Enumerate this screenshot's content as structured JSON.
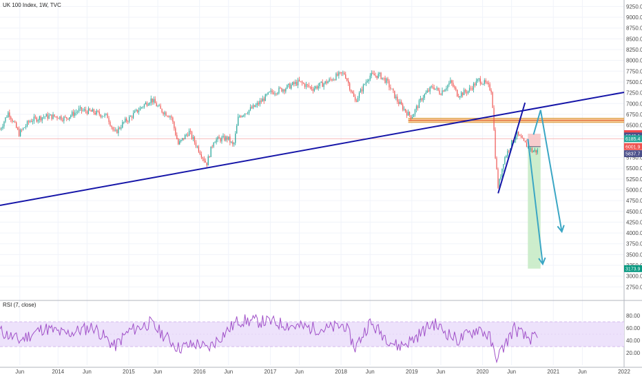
{
  "header": {
    "symbol_title": "UK 100 Index, 1W, TVC"
  },
  "rsi_header": {
    "label": "RSI (7, close)"
  },
  "colors": {
    "up": "#26a69a",
    "down": "#ef5350",
    "trendline": "#1515a8",
    "arrow": "#3aa6c4",
    "rsi_line": "#a050c8",
    "rsi_band": "#ede2fb",
    "zone_orange": "#f2b36e",
    "stop_zone": "#f7c4c4",
    "target_zone": "#c8ebc6"
  },
  "chart_data": [
    {
      "type": "candlestick",
      "title": "UK 100 Index, 1W, TVC",
      "ylim": [
        2500,
        9400
      ],
      "y_ticks": [
        9250,
        9000,
        8750,
        8500,
        8250,
        8000,
        7750,
        7500,
        7250,
        7000,
        6750,
        6500,
        6250,
        6000,
        5750,
        5500,
        5250,
        5000,
        4750,
        4500,
        4250,
        4000,
        3750,
        3500,
        3250,
        3000,
        2750
      ],
      "x_range": [
        2013.18,
        2022.0
      ],
      "x_tick_labels": [
        {
          "t": 2013.46,
          "label": "Jun"
        },
        {
          "t": 2014.0,
          "label": "2014"
        },
        {
          "t": 2014.41,
          "label": "Jun"
        },
        {
          "t": 2015.0,
          "label": "2015"
        },
        {
          "t": 2015.41,
          "label": "Jun"
        },
        {
          "t": 2016.0,
          "label": "2016"
        },
        {
          "t": 2016.41,
          "label": "Jun"
        },
        {
          "t": 2017.0,
          "label": "2017"
        },
        {
          "t": 2017.41,
          "label": "Jun"
        },
        {
          "t": 2018.0,
          "label": "2018"
        },
        {
          "t": 2018.41,
          "label": "Jun"
        },
        {
          "t": 2019.0,
          "label": "2019"
        },
        {
          "t": 2019.41,
          "label": "Jun"
        },
        {
          "t": 2020.0,
          "label": "2020"
        },
        {
          "t": 2020.41,
          "label": "Jun"
        },
        {
          "t": 2021.0,
          "label": "2021"
        },
        {
          "t": 2021.41,
          "label": "Jun"
        },
        {
          "t": 2022.0,
          "label": "2022"
        }
      ],
      "price_anchors": [
        [
          2013.18,
          6400
        ],
        [
          2013.3,
          6800
        ],
        [
          2013.45,
          6300
        ],
        [
          2013.6,
          6600
        ],
        [
          2013.8,
          6700
        ],
        [
          2014.0,
          6700
        ],
        [
          2014.1,
          6650
        ],
        [
          2014.3,
          6850
        ],
        [
          2014.5,
          6800
        ],
        [
          2014.7,
          6700
        ],
        [
          2014.8,
          6300
        ],
        [
          2014.92,
          6550
        ],
        [
          2015.0,
          6650
        ],
        [
          2015.2,
          6950
        ],
        [
          2015.32,
          7100
        ],
        [
          2015.45,
          6850
        ],
        [
          2015.6,
          6700
        ],
        [
          2015.7,
          6050
        ],
        [
          2015.85,
          6350
        ],
        [
          2016.0,
          5900
        ],
        [
          2016.1,
          5600
        ],
        [
          2016.2,
          6150
        ],
        [
          2016.4,
          6200
        ],
        [
          2016.48,
          6000
        ],
        [
          2016.55,
          6700
        ],
        [
          2016.8,
          6950
        ],
        [
          2017.0,
          7250
        ],
        [
          2017.2,
          7350
        ],
        [
          2017.4,
          7500
        ],
        [
          2017.6,
          7350
        ],
        [
          2017.8,
          7500
        ],
        [
          2017.95,
          7650
        ],
        [
          2018.05,
          7700
        ],
        [
          2018.2,
          7050
        ],
        [
          2018.4,
          7650
        ],
        [
          2018.55,
          7650
        ],
        [
          2018.65,
          7500
        ],
        [
          2018.8,
          7050
        ],
        [
          2018.95,
          6750
        ],
        [
          2019.0,
          6700
        ],
        [
          2019.15,
          7150
        ],
        [
          2019.3,
          7400
        ],
        [
          2019.4,
          7250
        ],
        [
          2019.55,
          7500
        ],
        [
          2019.65,
          7200
        ],
        [
          2019.8,
          7300
        ],
        [
          2019.95,
          7550
        ],
        [
          2020.05,
          7450
        ],
        [
          2020.13,
          7300
        ],
        [
          2020.18,
          5800
        ],
        [
          2020.22,
          5050
        ],
        [
          2020.3,
          5700
        ],
        [
          2020.4,
          6050
        ],
        [
          2020.48,
          6300
        ],
        [
          2020.58,
          6100
        ],
        [
          2020.7,
          5900
        ],
        [
          2020.78,
          5900
        ]
      ],
      "rsi_ylim": [
        0,
        100
      ],
      "rsi_ticks": [
        80,
        60,
        40,
        20
      ],
      "rsi_band": [
        30,
        70
      ],
      "rsi_anchors": [
        [
          2013.18,
          55
        ],
        [
          2013.45,
          40
        ],
        [
          2013.8,
          60
        ],
        [
          2014.1,
          50
        ],
        [
          2014.5,
          62
        ],
        [
          2014.8,
          30
        ],
        [
          2015.0,
          55
        ],
        [
          2015.3,
          68
        ],
        [
          2015.7,
          28
        ],
        [
          2016.0,
          35
        ],
        [
          2016.1,
          25
        ],
        [
          2016.55,
          72
        ],
        [
          2017.0,
          70
        ],
        [
          2017.4,
          62
        ],
        [
          2017.8,
          58
        ],
        [
          2018.05,
          65
        ],
        [
          2018.2,
          28
        ],
        [
          2018.4,
          68
        ],
        [
          2018.8,
          30
        ],
        [
          2019.0,
          40
        ],
        [
          2019.3,
          68
        ],
        [
          2019.65,
          40
        ],
        [
          2019.95,
          60
        ],
        [
          2020.1,
          45
        ],
        [
          2020.18,
          12
        ],
        [
          2020.25,
          20
        ],
        [
          2020.45,
          60
        ],
        [
          2020.6,
          45
        ],
        [
          2020.78,
          42
        ]
      ],
      "trendlines": [
        {
          "name": "long-term-support",
          "from": [
            2013.18,
            4640
          ],
          "to": [
            2022.0,
            7260
          ]
        },
        {
          "name": "rising-wedge",
          "from": [
            2020.22,
            4920
          ],
          "to": [
            2020.6,
            7020
          ]
        }
      ],
      "resistance_zone": [
        6560,
        6660
      ],
      "arrows": [
        {
          "name": "projection-1",
          "path": [
            [
              2020.72,
              6280
            ],
            [
              2020.82,
              6850
            ],
            [
              2021.12,
              4030
            ]
          ]
        },
        {
          "name": "projection-2",
          "path": [
            [
              2020.64,
              6180
            ],
            [
              2020.85,
              3280
            ]
          ]
        }
      ],
      "stop_zone": {
        "t0": 2020.64,
        "t1": 2020.82,
        "top": 6300.8,
        "bottom": 6001.9
      },
      "target_zone": {
        "t0": 2020.64,
        "t1": 2020.82,
        "top": 6001.9,
        "bottom": 3173.9
      },
      "entry_line": 6001.9,
      "current_price_line": 6185.4,
      "price_badges": [
        {
          "value": 6300.8,
          "label": "6300.8",
          "color": "#f23645"
        },
        {
          "value": 6280.7,
          "label": "6280.7",
          "color": "#ef5350"
        },
        {
          "value": 6249.1,
          "label": "6249.1",
          "color": "#4b4f8a"
        },
        {
          "value": 6185.4,
          "label": "6185.4",
          "color": "#26a69a"
        },
        {
          "value": 6001.9,
          "label": "6001.9",
          "color": "#ef5350"
        },
        {
          "value": 5837.7,
          "label": "5837.7",
          "color": "#4b4f8a"
        },
        {
          "value": 3173.9,
          "label": "3173.9",
          "color": "#089981"
        }
      ]
    }
  ]
}
